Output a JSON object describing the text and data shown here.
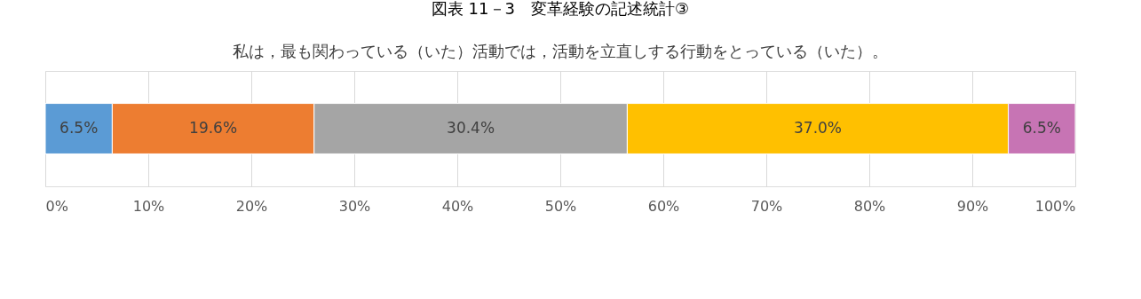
{
  "chart_data": {
    "type": "bar",
    "title": "図表 11－3　変革経験の記述統計③",
    "subtitle": "私は，最も関わっている（いた）活動では，活動を立直しする行動をとっている（いた）。",
    "orientation": "horizontal",
    "stacked": true,
    "categories": [
      null
    ],
    "series": [
      {
        "color": "#5b9bd5",
        "values": [
          6.5
        ],
        "value_labels": [
          "6.5%"
        ]
      },
      {
        "color": "#ed7d31",
        "values": [
          19.6
        ],
        "value_labels": [
          "19.6%"
        ]
      },
      {
        "color": "#a5a5a5",
        "values": [
          30.4
        ],
        "value_labels": [
          "30.4%"
        ]
      },
      {
        "color": "#ffc000",
        "values": [
          37.0
        ],
        "value_labels": [
          "37.0%"
        ]
      },
      {
        "color": "#c774b4",
        "values": [
          6.5
        ],
        "value_labels": [
          "6.5%"
        ]
      }
    ],
    "xlim": [
      0,
      100
    ],
    "xticks": [
      {
        "value": 0,
        "label": "0%"
      },
      {
        "value": 10,
        "label": "10%"
      },
      {
        "value": 20,
        "label": "20%"
      },
      {
        "value": 30,
        "label": "30%"
      },
      {
        "value": 40,
        "label": "40%"
      },
      {
        "value": 50,
        "label": "50%"
      },
      {
        "value": 60,
        "label": "60%"
      },
      {
        "value": 70,
        "label": "70%"
      },
      {
        "value": 80,
        "label": "80%"
      },
      {
        "value": 90,
        "label": "90%"
      },
      {
        "value": 100,
        "label": "100%"
      }
    ],
    "grid": "x"
  }
}
